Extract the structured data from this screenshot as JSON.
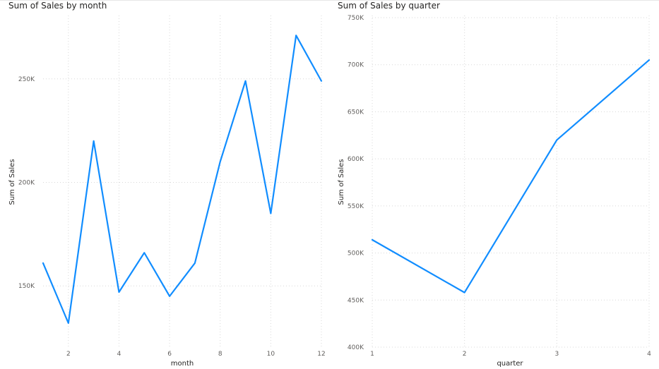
{
  "colors": {
    "series": "#118DFF"
  },
  "chart_data": [
    {
      "type": "line",
      "title": "Sum of Sales by month",
      "xlabel": "month",
      "ylabel": "Sum of Sales",
      "x": [
        1,
        2,
        3,
        4,
        5,
        6,
        7,
        8,
        9,
        10,
        11,
        12
      ],
      "series": [
        {
          "values": [
            161000,
            132000,
            220000,
            147000,
            166000,
            145000,
            161000,
            210000,
            249000,
            185000,
            271000,
            249000
          ]
        }
      ],
      "x_ticks": [
        2,
        4,
        6,
        8,
        10,
        12
      ],
      "y_ticks": [
        150000,
        200000,
        250000
      ],
      "y_tick_labels": [
        "150K",
        "200K",
        "250K"
      ],
      "xlim": [
        1,
        12
      ],
      "ylim": [
        118000,
        285000
      ],
      "grid": true
    },
    {
      "type": "line",
      "title": "Sum of Sales by quarter",
      "xlabel": "quarter",
      "ylabel": "Sum of Sales",
      "x": [
        1,
        2,
        3,
        4
      ],
      "series": [
        {
          "values": [
            514000,
            458000,
            620000,
            705000
          ]
        }
      ],
      "x_ticks": [
        1,
        2,
        3,
        4
      ],
      "y_ticks": [
        400000,
        450000,
        500000,
        550000,
        600000,
        650000,
        700000,
        750000
      ],
      "y_tick_labels": [
        "400K",
        "450K",
        "500K",
        "550K",
        "600K",
        "650K",
        "700K",
        "750K"
      ],
      "xlim": [
        1,
        4
      ],
      "ylim": [
        400000,
        750000
      ],
      "grid": true
    }
  ]
}
